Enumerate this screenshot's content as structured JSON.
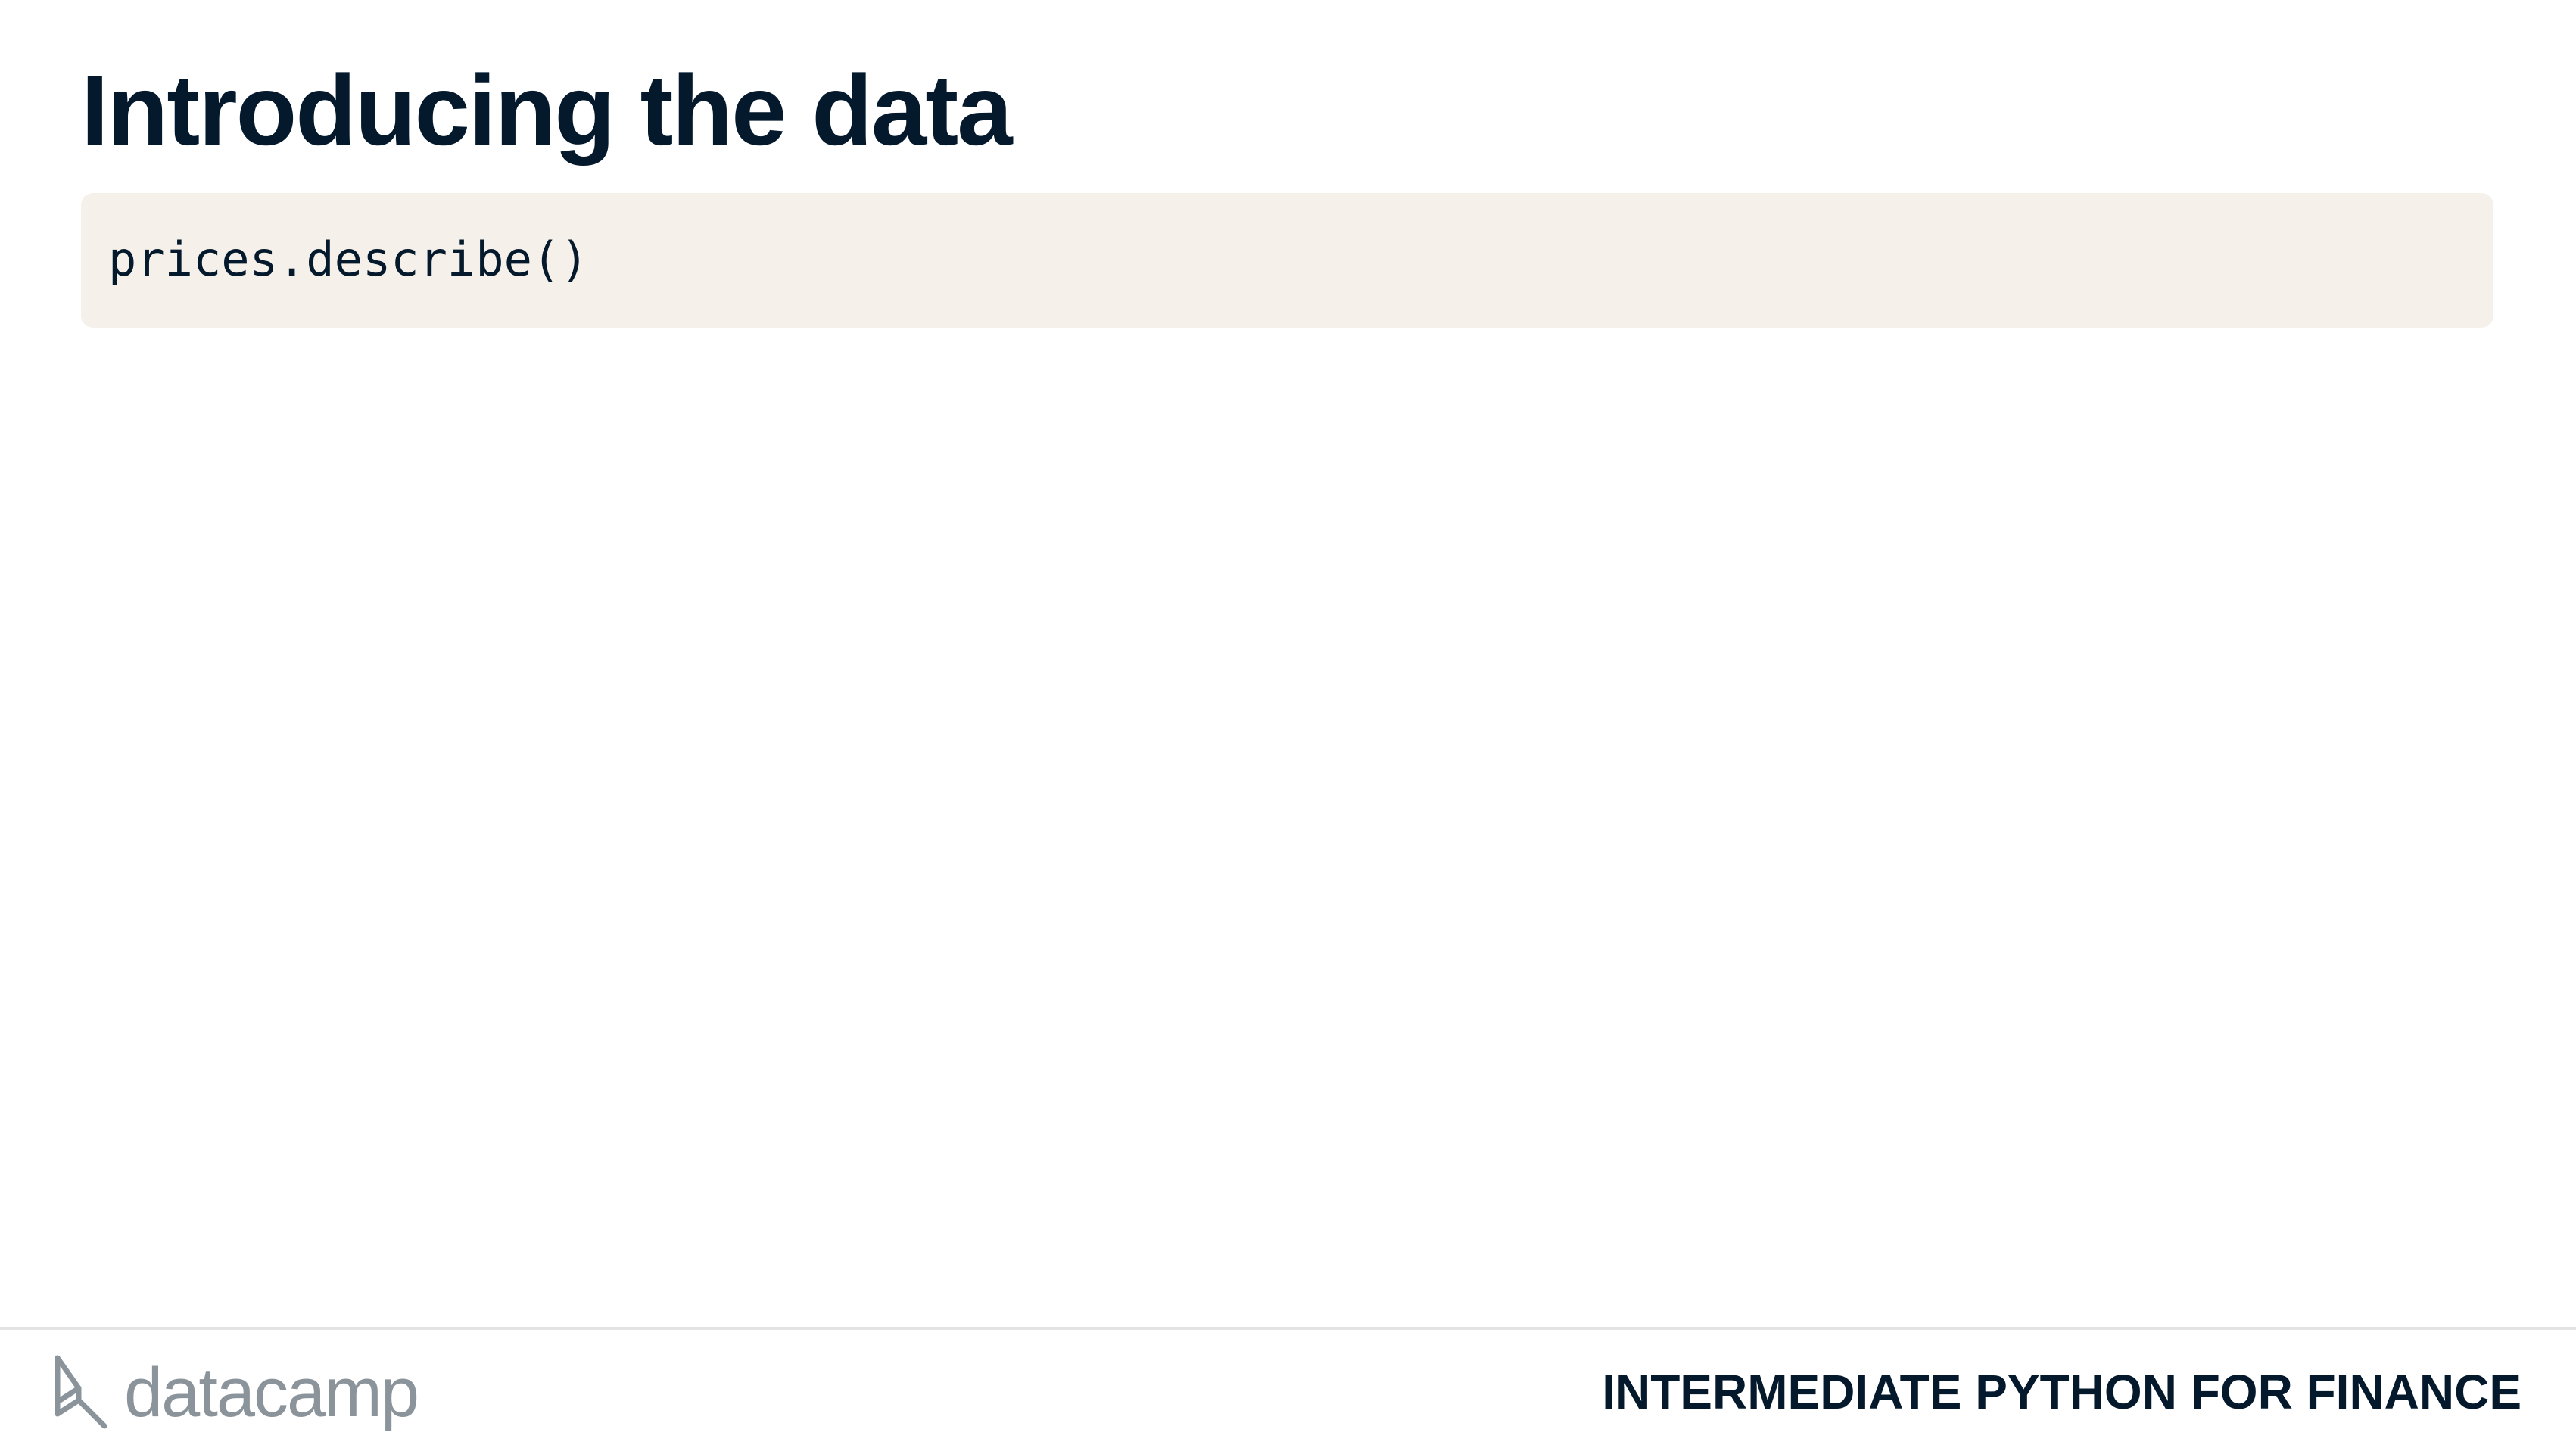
{
  "slide": {
    "title": "Introducing the data"
  },
  "code": {
    "line": "prices.describe()"
  },
  "footer": {
    "brand": "datacamp",
    "course_title": "INTERMEDIATE PYTHON FOR FINANCE"
  },
  "colors": {
    "title": "#05192d",
    "code_background": "#f5f1ea",
    "brand_gray": "#8b949b",
    "divider": "#e3e3e3"
  }
}
